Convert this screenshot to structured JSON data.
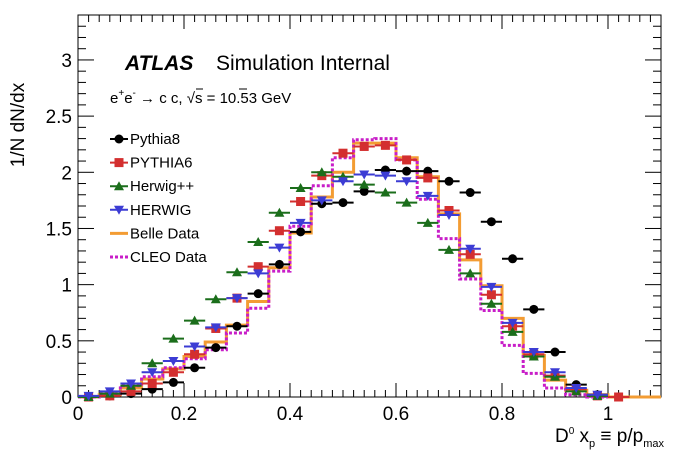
{
  "chart_data": {
    "type": "scatter",
    "xlabel": {
      "main": "D",
      "sup": "0",
      "x": " x",
      "xsub": "p",
      "rest": " ≡ p/p",
      "restsub": "max"
    },
    "ylabel": "1/N dN/dx",
    "xlim": [
      0,
      1.1
    ],
    "ylim": [
      0,
      3.4
    ],
    "xticks": [
      "0",
      "0.2",
      "0.4",
      "0.6",
      "0.8",
      "1"
    ],
    "xtick_values": [
      0,
      0.2,
      0.4,
      0.6,
      0.8,
      1.0
    ],
    "yticks": [
      "0",
      "0.5",
      "1",
      "1.5",
      "2",
      "2.5",
      "3"
    ],
    "ytick_values": [
      0,
      0.5,
      1,
      1.5,
      2,
      2.5,
      3
    ],
    "grid": false,
    "legend_position": "left",
    "annotations": {
      "atlas": "ATLAS",
      "atlas_sub": "Simulation Internal",
      "process": {
        "e1": "e",
        "e1sup": "+",
        "e2": "e",
        "e2sup": "-",
        "arrow": " → c ",
        "cbar": "c",
        "comma": ",  ",
        "sqrt": "√",
        "s": "s",
        "energy": " = 10.53 GeV"
      }
    },
    "series": [
      {
        "name": "Pythia8",
        "color": "#000000",
        "marker": "circle",
        "bin_width": 0.04,
        "x": [
          0.02,
          0.06,
          0.1,
          0.14,
          0.18,
          0.22,
          0.26,
          0.3,
          0.34,
          0.38,
          0.42,
          0.46,
          0.5,
          0.54,
          0.58,
          0.62,
          0.66,
          0.7,
          0.74,
          0.78,
          0.82,
          0.86,
          0.9,
          0.94,
          0.98,
          1.02
        ],
        "y": [
          0.0,
          0.01,
          0.03,
          0.07,
          0.13,
          0.26,
          0.44,
          0.63,
          0.92,
          1.18,
          1.47,
          1.72,
          1.73,
          1.83,
          2.02,
          2.01,
          2.01,
          1.92,
          1.82,
          1.56,
          1.23,
          0.78,
          0.4,
          0.11,
          0.02,
          0.0
        ]
      },
      {
        "name": "PYTHIA6",
        "color": "#d32f2f",
        "marker": "square",
        "bin_width": 0.04,
        "x": [
          0.02,
          0.06,
          0.1,
          0.14,
          0.18,
          0.22,
          0.26,
          0.3,
          0.34,
          0.38,
          0.42,
          0.46,
          0.5,
          0.54,
          0.58,
          0.62,
          0.66,
          0.7,
          0.74,
          0.78,
          0.82,
          0.86,
          0.9,
          0.94,
          0.98,
          1.02
        ],
        "y": [
          0.0,
          0.01,
          0.05,
          0.12,
          0.22,
          0.38,
          0.61,
          0.88,
          1.16,
          1.48,
          1.74,
          1.97,
          2.17,
          2.23,
          2.24,
          2.11,
          1.95,
          1.66,
          1.27,
          0.91,
          0.63,
          0.38,
          0.19,
          0.07,
          0.01,
          0.0
        ]
      },
      {
        "name": "Herwig++",
        "color": "#1b6e1b",
        "marker": "triangle-up",
        "bin_width": 0.04,
        "x": [
          0.02,
          0.06,
          0.1,
          0.14,
          0.18,
          0.22,
          0.26,
          0.3,
          0.34,
          0.38,
          0.42,
          0.46,
          0.5,
          0.54,
          0.58,
          0.62,
          0.66,
          0.7,
          0.74,
          0.78,
          0.82,
          0.86,
          0.9,
          0.94,
          0.98
        ],
        "y": [
          0.0,
          0.03,
          0.1,
          0.3,
          0.52,
          0.68,
          0.87,
          1.11,
          1.38,
          1.64,
          1.86,
          2.0,
          1.96,
          1.89,
          1.82,
          1.73,
          1.55,
          1.31,
          1.1,
          0.83,
          0.58,
          0.36,
          0.18,
          0.05,
          0.01
        ]
      },
      {
        "name": "HERWIG",
        "color": "#3c3cd4",
        "marker": "triangle-down",
        "bin_width": 0.04,
        "x": [
          0.02,
          0.06,
          0.1,
          0.14,
          0.18,
          0.22,
          0.26,
          0.3,
          0.34,
          0.38,
          0.42,
          0.46,
          0.5,
          0.54,
          0.58,
          0.62,
          0.66,
          0.7,
          0.74,
          0.78,
          0.82,
          0.86,
          0.9,
          0.94,
          0.98
        ],
        "y": [
          0.01,
          0.05,
          0.12,
          0.22,
          0.32,
          0.45,
          0.62,
          0.88,
          1.1,
          1.33,
          1.55,
          1.75,
          1.92,
          1.98,
          1.97,
          1.92,
          1.79,
          1.62,
          1.32,
          0.98,
          0.66,
          0.4,
          0.22,
          0.08,
          0.02
        ]
      }
    ],
    "histograms": [
      {
        "name": "Belle Data",
        "color": "#f39c33",
        "style": "solid",
        "edges": [
          0.0,
          0.04,
          0.08,
          0.12,
          0.16,
          0.2,
          0.24,
          0.28,
          0.32,
          0.36,
          0.4,
          0.44,
          0.48,
          0.52,
          0.56,
          0.6,
          0.64,
          0.68,
          0.72,
          0.76,
          0.8,
          0.84,
          0.88,
          0.92,
          0.96,
          1.0,
          1.04,
          1.1
        ],
        "values": [
          0.0,
          0.02,
          0.08,
          0.16,
          0.25,
          0.36,
          0.49,
          0.64,
          0.85,
          1.15,
          1.46,
          1.78,
          2.0,
          2.26,
          2.26,
          2.13,
          1.96,
          1.63,
          1.22,
          0.99,
          0.7,
          0.37,
          0.15,
          0.06,
          0.02,
          0.0,
          0.0
        ]
      },
      {
        "name": "CLEO Data",
        "color": "#c81ec8",
        "style": "dotted",
        "edges": [
          0.0,
          0.04,
          0.08,
          0.12,
          0.16,
          0.2,
          0.24,
          0.28,
          0.32,
          0.36,
          0.4,
          0.44,
          0.48,
          0.52,
          0.56,
          0.6,
          0.64,
          0.68,
          0.72,
          0.76,
          0.8,
          0.84,
          0.88,
          0.92,
          0.96,
          1.0
        ],
        "values": [
          0.0,
          0.03,
          0.1,
          0.18,
          0.26,
          0.34,
          0.42,
          0.57,
          0.79,
          1.12,
          1.52,
          1.88,
          2.13,
          2.29,
          2.3,
          2.11,
          1.76,
          1.41,
          1.05,
          0.77,
          0.46,
          0.21,
          0.08,
          0.02,
          0.0
        ]
      }
    ]
  }
}
